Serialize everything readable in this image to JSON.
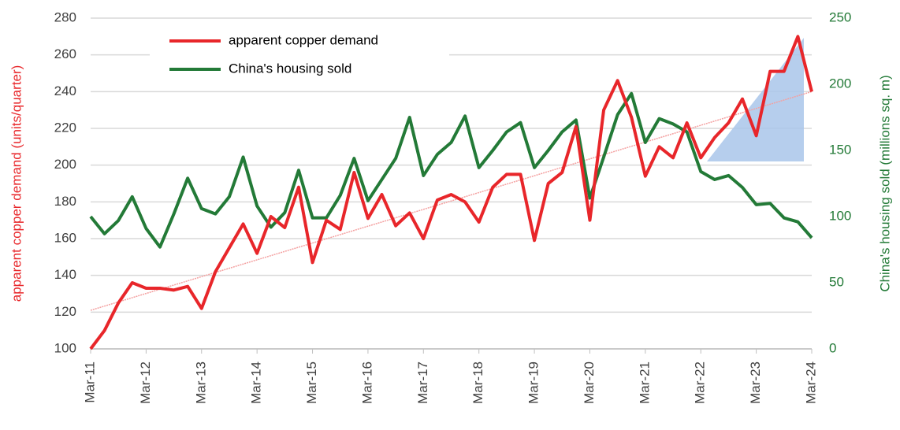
{
  "chart_data": {
    "type": "line",
    "categories": [
      "Mar-11",
      null,
      null,
      null,
      "Mar-12",
      null,
      null,
      null,
      "Mar-13",
      null,
      null,
      null,
      "Mar-14",
      null,
      null,
      null,
      "Mar-15",
      null,
      null,
      null,
      "Mar-16",
      null,
      null,
      null,
      "Mar-17",
      null,
      null,
      null,
      "Mar-18",
      null,
      null,
      null,
      "Mar-19",
      null,
      null,
      null,
      "Mar-20",
      null,
      null,
      null,
      "Mar-21",
      null,
      null,
      null,
      "Mar-22",
      null,
      null,
      null,
      "Mar-23",
      null,
      null,
      null,
      "Mar-24"
    ],
    "series": [
      {
        "name": "apparent copper demand",
        "color": "#e8262a",
        "axis": "y",
        "values": [
          100,
          110,
          125,
          136,
          133,
          133,
          132,
          134,
          122,
          142,
          155,
          168,
          152,
          172,
          166,
          188,
          147,
          170,
          165,
          196,
          171,
          184,
          167,
          174,
          160,
          181,
          184,
          180,
          169,
          188,
          195,
          195,
          159,
          190,
          196,
          221,
          170,
          230,
          246,
          226,
          194,
          210,
          204,
          223,
          204,
          215,
          223,
          236,
          216,
          251,
          251,
          270,
          240
        ]
      },
      {
        "name": "China's housing sold",
        "color": "#237a37",
        "axis": "y2",
        "values": [
          100,
          87,
          97,
          115,
          91,
          77,
          102,
          129,
          106,
          102,
          115,
          145,
          108,
          92,
          103,
          135,
          99,
          99,
          116,
          144,
          112,
          128,
          144,
          175,
          131,
          147,
          156,
          176,
          137,
          150,
          164,
          171,
          137,
          150,
          164,
          173,
          114,
          145,
          177,
          193,
          156,
          174,
          170,
          164,
          134,
          128,
          131,
          122,
          109,
          110,
          99,
          96,
          84
        ]
      }
    ],
    "trendline": {
      "color": "#f4a0a0",
      "values": [
        121,
        240
      ]
    },
    "ylabel": "apparent copper demand (units/quarter)",
    "y2label": "China's housing sold (millions sq. m)",
    "ylim": [
      100,
      280
    ],
    "yticks": [
      100,
      120,
      140,
      160,
      180,
      200,
      220,
      240,
      260,
      280
    ],
    "y2lim": [
      0,
      250
    ],
    "y2ticks": [
      0,
      50,
      100,
      150,
      200,
      250
    ],
    "grid": true,
    "legend": "upper left"
  }
}
